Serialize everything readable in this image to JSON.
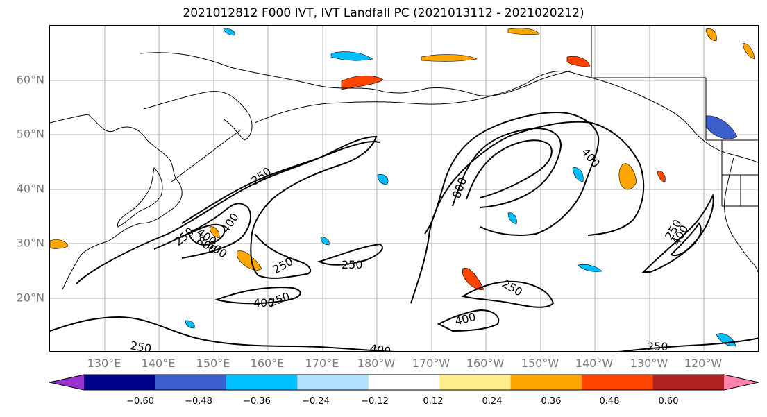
{
  "title": "2021012812 F000 IVT, IVT Landfall PC (2021013112 - 2021020212)",
  "lat_labels": [
    "60°N",
    "50°N",
    "40°N",
    "30°N",
    "20°N"
  ],
  "lon_labels": [
    "130°E",
    "140°E",
    "150°E",
    "160°E",
    "170°E",
    "180°W",
    "170°W",
    "160°W",
    "150°W",
    "140°W",
    "130°W",
    "120°W"
  ],
  "contour_labels": [
    "250",
    "400",
    "250",
    "400",
    "800",
    "600",
    "250",
    "250",
    "400",
    "400",
    "800",
    "250",
    "400",
    "400",
    "250",
    "250",
    "250",
    "250",
    "400"
  ],
  "colorbar": {
    "ticks": [
      "−0.60",
      "−0.48",
      "−0.36",
      "−0.24",
      "−0.12",
      "0.12",
      "0.24",
      "0.36",
      "0.48",
      "0.60"
    ],
    "colors": [
      "#9932cc",
      "#00008b",
      "#3a5fcd",
      "#00bfff",
      "#b0e2ff",
      "#ffffff",
      "#ffec8b",
      "#ffa500",
      "#ff4500",
      "#b22222",
      "#ff82ab"
    ]
  },
  "colors": {
    "grid": "#b0b0b0",
    "coast": "#000000",
    "contour": "#000000",
    "axis_label": "#7a7a7a"
  }
}
